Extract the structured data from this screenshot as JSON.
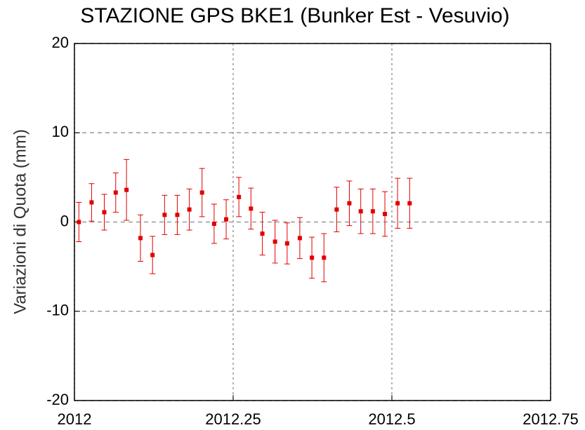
{
  "chart_data": {
    "type": "scatter",
    "title": "STAZIONE GPS BKE1 (Bunker Est - Vesuvio)",
    "y_label": "Variazioni di Quota (mm)",
    "x": [
      2012.007,
      2012.027,
      2012.047,
      2012.065,
      2012.082,
      2012.104,
      2012.123,
      2012.142,
      2012.162,
      2012.181,
      2012.201,
      2012.22,
      2012.239,
      2012.259,
      2012.278,
      2012.296,
      2012.316,
      2012.335,
      2012.355,
      2012.374,
      2012.393,
      2012.413,
      2012.433,
      2012.451,
      2012.47,
      2012.489,
      2012.509,
      2012.528
    ],
    "values": [
      0,
      2.2,
      1.1,
      3.3,
      3.6,
      -1.8,
      -3.7,
      0.8,
      0.8,
      1.4,
      3.3,
      -0.2,
      0.3,
      2.8,
      1.5,
      -1.3,
      -2.2,
      -2.4,
      -1.8,
      -4.0,
      -4.0,
      1.4,
      2.1,
      1.2,
      1.2,
      0.9,
      2.1,
      2.1
    ],
    "errors": [
      2.2,
      2.1,
      2.0,
      2.2,
      3.4,
      2.6,
      2.1,
      2.2,
      2.2,
      2.3,
      2.7,
      2.2,
      2.2,
      2.2,
      2.3,
      2.4,
      2.4,
      2.3,
      2.3,
      2.3,
      2.7,
      2.5,
      2.5,
      2.5,
      2.5,
      2.5,
      2.8,
      2.8
    ],
    "color": "#e00000",
    "xlim": [
      2012,
      2012.75
    ],
    "xticks": [
      2012,
      2012.25,
      2012.5,
      2012.75
    ],
    "ylim": [
      -20,
      20
    ],
    "yticks": [
      -20,
      -10,
      0,
      10,
      20
    ],
    "grid": true
  }
}
